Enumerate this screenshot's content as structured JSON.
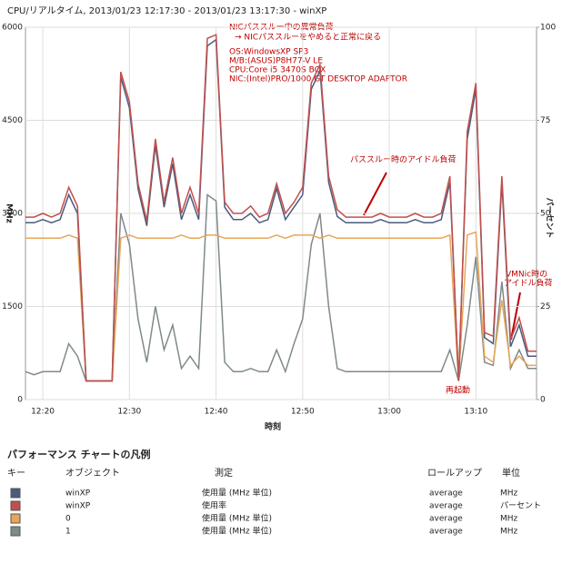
{
  "chart_data": {
    "type": "line",
    "title": "CPU/リアルタイム, 2013/01/23 12:17:30 - 2013/01/23 13:17:30 - winXP",
    "x_label": "時刻",
    "y_label": "MHz",
    "y2_label": "パーセント",
    "x": [
      "12:18",
      "12:19",
      "12:20",
      "12:21",
      "12:22",
      "12:23",
      "12:24",
      "12:25",
      "12:26",
      "12:27",
      "12:28",
      "12:29",
      "12:30",
      "12:31",
      "12:32",
      "12:33",
      "12:34",
      "12:35",
      "12:36",
      "12:37",
      "12:38",
      "12:39",
      "12:40",
      "12:41",
      "12:42",
      "12:43",
      "12:44",
      "12:45",
      "12:46",
      "12:47",
      "12:48",
      "12:49",
      "12:50",
      "12:51",
      "12:52",
      "12:53",
      "12:54",
      "12:55",
      "12:56",
      "12:57",
      "12:58",
      "12:59",
      "13:00",
      "13:01",
      "13:02",
      "13:03",
      "13:04",
      "13:05",
      "13:06",
      "13:07",
      "13:08",
      "13:09",
      "13:10",
      "13:11",
      "13:12",
      "13:13",
      "13:14",
      "13:15",
      "13:16",
      "13:17"
    ],
    "xlim": [
      "12:18",
      "13:17"
    ],
    "xticks": [
      "12:20",
      "12:30",
      "12:40",
      "12:50",
      "13:00",
      "13:10"
    ],
    "ylim": [
      0,
      6000
    ],
    "yticks": [
      0,
      1500,
      3000,
      4500,
      6000
    ],
    "y2lim": [
      0,
      100
    ],
    "y2ticks": [
      0,
      25,
      50,
      75,
      100
    ],
    "grid": true,
    "series": [
      {
        "name": "winXP",
        "color": "#4b5a7d",
        "values": [
          2850,
          2850,
          2900,
          2850,
          2900,
          3300,
          3000,
          300,
          300,
          300,
          300,
          5200,
          4700,
          3400,
          2800,
          4100,
          3100,
          3800,
          2900,
          3300,
          2900,
          5700,
          5800,
          3100,
          2900,
          2900,
          3000,
          2850,
          2900,
          3400,
          2900,
          3100,
          3300,
          5000,
          5300,
          3500,
          2950,
          2850,
          2850,
          2850,
          2850,
          2900,
          2850,
          2850,
          2850,
          2900,
          2850,
          2850,
          2900,
          3500,
          300,
          4200,
          5000,
          1000,
          900,
          3500,
          850,
          1200,
          700,
          700
        ]
      },
      {
        "name": "winXP",
        "color": "#c0504d",
        "axis": "y2",
        "values": [
          49,
          49,
          50,
          49,
          50,
          57,
          52,
          5,
          5,
          5,
          5,
          88,
          80,
          58,
          48,
          70,
          53,
          65,
          50,
          57,
          50,
          97,
          98,
          53,
          50,
          50,
          52,
          49,
          50,
          58,
          50,
          53,
          57,
          85,
          90,
          60,
          51,
          49,
          49,
          49,
          49,
          50,
          49,
          49,
          49,
          50,
          49,
          49,
          50,
          60,
          5,
          72,
          85,
          18,
          17,
          60,
          16,
          22,
          13,
          13
        ]
      },
      {
        "name": "0",
        "color": "#e8a657",
        "values": [
          2600,
          2600,
          2600,
          2600,
          2600,
          2650,
          2600,
          300,
          300,
          300,
          300,
          2600,
          2650,
          2600,
          2600,
          2600,
          2600,
          2600,
          2650,
          2600,
          2600,
          2650,
          2650,
          2600,
          2600,
          2600,
          2600,
          2600,
          2600,
          2650,
          2600,
          2650,
          2650,
          2650,
          2600,
          2650,
          2600,
          2600,
          2600,
          2600,
          2600,
          2600,
          2600,
          2600,
          2600,
          2600,
          2600,
          2600,
          2600,
          2650,
          300,
          2650,
          2700,
          700,
          600,
          1600,
          550,
          700,
          550,
          550
        ]
      },
      {
        "name": "1",
        "color": "#7f8a8a",
        "values": [
          450,
          400,
          450,
          450,
          450,
          900,
          700,
          300,
          300,
          300,
          300,
          3000,
          2500,
          1300,
          600,
          1500,
          800,
          1200,
          500,
          700,
          500,
          3300,
          3200,
          600,
          450,
          450,
          500,
          450,
          450,
          800,
          450,
          900,
          1300,
          2500,
          3000,
          1500,
          500,
          450,
          450,
          450,
          450,
          450,
          450,
          450,
          450,
          450,
          450,
          450,
          450,
          800,
          300,
          1200,
          2300,
          600,
          550,
          1900,
          500,
          800,
          500,
          500
        ]
      }
    ],
    "annotations": [
      "NICパススルー中の異常負荷",
      "→ NICパススルーをやめると正常に戻る",
      "OS:WindowsXP SP3",
      "M/B:(ASUS)P8H77-V LE",
      "CPU:Core i5 3470S BOX",
      "NIC:(Intel)PRO/1000 GT DESKTOP ADAPTOR",
      "パススルー時のアイドル負荷",
      "VMNic時の",
      "アイドル負荷",
      "再起動"
    ]
  },
  "legend": {
    "title": "パフォーマンス チャートの凡例",
    "headers": [
      "キー",
      "オブジェクト",
      "測定",
      "ロールアップ",
      "単位"
    ],
    "rows": [
      {
        "measure": "使用量 (MHz 単位)",
        "rollup": "average",
        "unit": "MHz"
      },
      {
        "measure": "使用率",
        "rollup": "average",
        "unit": "パーセント"
      },
      {
        "measure": "使用量 (MHz 単位)",
        "rollup": "average",
        "unit": "MHz"
      },
      {
        "measure": "使用量 (MHz 単位)",
        "rollup": "average",
        "unit": "MHz"
      }
    ]
  }
}
